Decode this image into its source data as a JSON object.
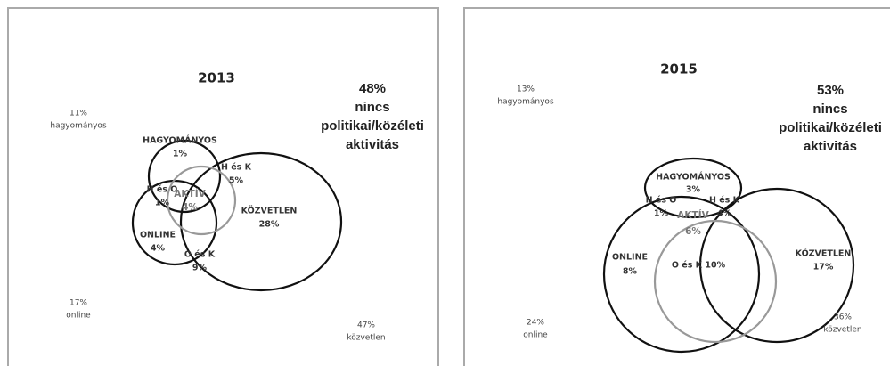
{
  "panels": [
    {
      "title": "2013",
      "notes": [
        [
          "11%",
          "hagyományos"
        ],
        [
          "17%",
          "online"
        ],
        [
          "47%",
          "közvetlen"
        ]
      ],
      "headline": [
        "48%",
        "nincs",
        "politikai/közéleti",
        "aktivitás"
      ],
      "regions": [
        [
          "HAGYOMÁNYOS",
          "1%"
        ],
        [
          "H és K",
          "5%"
        ],
        [
          "H és O",
          "1%"
        ],
        [
          "AKTÍV",
          "4%"
        ],
        [
          "KÖZVETLEN",
          "28%"
        ],
        [
          "ONLINE",
          "4%"
        ],
        [
          "O és K",
          "9%"
        ]
      ]
    },
    {
      "title": "2015",
      "notes": [
        [
          "13%",
          "hagyományos"
        ],
        [
          "24%",
          "online"
        ],
        [
          "36%",
          "közvetlen"
        ]
      ],
      "headline": [
        "53%",
        "nincs",
        "politikai/közéleti",
        "aktivitás"
      ],
      "regions": [
        [
          "HAGYOMÁNYOS",
          "3%"
        ],
        [
          "H és O",
          "1%"
        ],
        [
          "H és K",
          "4%"
        ],
        [
          "AKTÍV",
          "6%"
        ],
        [
          "ONLINE",
          "8%"
        ],
        [
          "O és K 10%"
        ],
        [
          "KÖZVETLEN",
          "17%"
        ]
      ]
    }
  ]
}
